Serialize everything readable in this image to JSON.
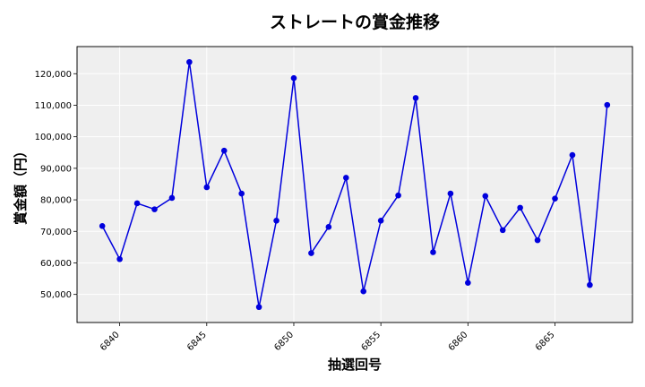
{
  "chart_data": {
    "type": "line",
    "title": "ストレートの賞金推移",
    "xlabel": "抽選回号",
    "ylabel": "賞金額（円）",
    "x": [
      6839,
      6840,
      6841,
      6842,
      6843,
      6844,
      6845,
      6846,
      6847,
      6848,
      6849,
      6850,
      6851,
      6852,
      6853,
      6854,
      6855,
      6856,
      6857,
      6858,
      6859,
      6860,
      6861,
      6862,
      6863,
      6864,
      6865,
      6866,
      6867,
      6868
    ],
    "series": [
      {
        "values": [
          71700,
          61200,
          78900,
          77000,
          80600,
          123700,
          84000,
          95600,
          82000,
          46000,
          73400,
          118600,
          63100,
          71400,
          87000,
          51000,
          73400,
          81400,
          112300,
          63400,
          82000,
          53700,
          81200,
          70400,
          77500,
          67200,
          80400,
          94200,
          53000,
          110100
        ],
        "color": "#0000dd"
      }
    ],
    "xticks": [
      6840,
      6845,
      6850,
      6855,
      6860,
      6865
    ],
    "xtick_labels": [
      "6840",
      "6845",
      "6850",
      "6855",
      "6860",
      "6865"
    ],
    "yticks": [
      50000,
      60000,
      70000,
      80000,
      90000,
      100000,
      110000,
      120000
    ],
    "ytick_labels": [
      "50,000",
      "60,000",
      "70,000",
      "80,000",
      "90,000",
      "100,000",
      "110,000",
      "120,000"
    ],
    "xlim": [
      6837.55,
      6869.45
    ],
    "ylim": [
      41100,
      128600
    ],
    "grid": true,
    "background_color": "#efefef"
  }
}
